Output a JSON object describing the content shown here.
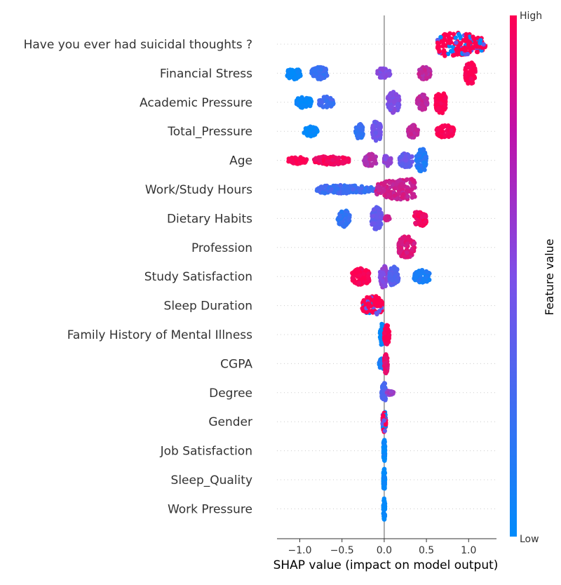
{
  "chart_data": {
    "type": "scatter",
    "subtype": "shap-beeswarm-summary",
    "title": "",
    "xlabel": "SHAP value (impact on model output)",
    "ylabel": "",
    "xlim": [
      -1.27,
      1.33
    ],
    "xticks": [
      -1.0,
      -0.5,
      0.0,
      0.5,
      1.0
    ],
    "xtick_labels": [
      "−1.0",
      "−0.5",
      "0.0",
      "0.5",
      "1.0"
    ],
    "zero_line": true,
    "grid": false,
    "colorbar": {
      "label": "Feature value",
      "high_label": "High",
      "low_label": "Low",
      "colors": [
        "#008bfb",
        "#7d4fe8",
        "#ff0052"
      ]
    },
    "features": [
      {
        "name": "Have you ever had suicidal thoughts ?",
        "clusters": [
          {
            "center": 0.62,
            "min": 0.63,
            "max": 1.2,
            "peak": 0.73,
            "halfHeight": 17,
            "value": 0.85,
            "mixed": true
          }
        ]
      },
      {
        "name": "Financial Stress",
        "clusters": [
          {
            "center": -1.07,
            "min": -1.15,
            "max": -0.99,
            "peak": -1.07,
            "halfHeight": 9,
            "value": 0.0
          },
          {
            "center": -0.77,
            "min": -0.86,
            "max": -0.67,
            "peak": -0.77,
            "halfHeight": 9,
            "value": 0.25
          },
          {
            "center": -0.02,
            "min": -0.08,
            "max": 0.07,
            "peak": -0.02,
            "halfHeight": 7,
            "value": 0.5
          },
          {
            "center": 0.47,
            "min": 0.41,
            "max": 0.55,
            "peak": 0.47,
            "halfHeight": 9,
            "value": 0.75
          },
          {
            "center": 1.02,
            "min": 0.96,
            "max": 1.08,
            "peak": 1.02,
            "halfHeight": 16,
            "value": 1.0
          }
        ]
      },
      {
        "name": "Academic Pressure",
        "clusters": [
          {
            "center": -0.95,
            "min": -1.04,
            "max": -0.86,
            "peak": -0.95,
            "halfHeight": 8,
            "value": 0.0
          },
          {
            "center": -0.69,
            "min": -0.77,
            "max": -0.6,
            "peak": -0.69,
            "halfHeight": 8,
            "value": 0.25
          },
          {
            "center": 0.11,
            "min": 0.04,
            "max": 0.18,
            "peak": 0.11,
            "halfHeight": 15,
            "value": 0.5
          },
          {
            "center": 0.45,
            "min": 0.39,
            "max": 0.51,
            "peak": 0.45,
            "halfHeight": 11,
            "value": 0.75
          },
          {
            "center": 0.67,
            "min": 0.61,
            "max": 0.73,
            "peak": 0.67,
            "halfHeight": 16,
            "value": 1.0
          }
        ]
      },
      {
        "name": "Total_Pressure",
        "clusters": [
          {
            "center": -0.87,
            "min": -0.95,
            "max": -0.79,
            "peak": -0.87,
            "halfHeight": 7,
            "value": 0.0
          },
          {
            "center": -0.3,
            "min": -0.34,
            "max": -0.25,
            "peak": -0.3,
            "halfHeight": 11,
            "value": 0.2
          },
          {
            "center": -0.09,
            "min": -0.14,
            "max": -0.04,
            "peak": -0.09,
            "halfHeight": 15,
            "value": 0.45
          },
          {
            "center": 0.34,
            "min": 0.28,
            "max": 0.4,
            "peak": 0.34,
            "halfHeight": 9,
            "value": 0.75
          },
          {
            "center": 0.72,
            "min": 0.62,
            "max": 0.83,
            "peak": 0.72,
            "halfHeight": 9,
            "value": 1.0
          }
        ]
      },
      {
        "name": "Age",
        "clusters": [
          {
            "center": -1.03,
            "min": -1.14,
            "max": -0.92,
            "peak": -1.03,
            "halfHeight": 5,
            "value": 1.0
          },
          {
            "center": -0.63,
            "min": -0.83,
            "max": -0.42,
            "peak": -0.63,
            "halfHeight": 6,
            "value": 0.95
          },
          {
            "center": -0.16,
            "min": -0.24,
            "max": -0.09,
            "peak": -0.16,
            "halfHeight": 9,
            "value": 0.7
          },
          {
            "center": 0.03,
            "min": 0.0,
            "max": 0.08,
            "peak": 0.03,
            "halfHeight": 8,
            "value": 0.55
          },
          {
            "center": 0.26,
            "min": 0.18,
            "max": 0.34,
            "peak": 0.26,
            "halfHeight": 10,
            "value": 0.4
          },
          {
            "center": 0.44,
            "min": 0.38,
            "max": 0.5,
            "peak": 0.44,
            "halfHeight": 17,
            "value": 0.15
          }
        ]
      },
      {
        "name": "Work/Study Hours",
        "clusters": [
          {
            "center": -0.45,
            "min": -0.8,
            "max": -0.1,
            "peak": -0.62,
            "halfHeight": 6,
            "value": 0.25
          },
          {
            "center": 0.14,
            "min": -0.1,
            "max": 0.38,
            "peak": 0.33,
            "halfHeight": 15,
            "value": 0.8
          }
        ]
      },
      {
        "name": "Dietary Habits",
        "clusters": [
          {
            "center": -0.48,
            "min": -0.55,
            "max": -0.41,
            "peak": -0.48,
            "halfHeight": 12,
            "value": 0.2
          },
          {
            "center": -0.09,
            "min": -0.15,
            "max": -0.03,
            "peak": -0.09,
            "halfHeight": 16,
            "value": 0.4
          },
          {
            "center": 0.03,
            "min": 0.01,
            "max": 0.07,
            "peak": 0.03,
            "halfHeight": 3,
            "value": 0.8
          },
          {
            "center": 0.42,
            "min": 0.35,
            "max": 0.5,
            "peak": 0.42,
            "halfHeight": 12,
            "value": 0.95
          }
        ]
      },
      {
        "name": "Profession",
        "clusters": [
          {
            "center": 0.26,
            "min": 0.17,
            "max": 0.36,
            "peak": 0.26,
            "halfHeight": 16,
            "value": 0.85
          }
        ]
      },
      {
        "name": "Study Satisfaction",
        "clusters": [
          {
            "center": -0.28,
            "min": -0.38,
            "max": -0.17,
            "peak": -0.28,
            "halfHeight": 12,
            "value": 1.0
          },
          {
            "center": -0.01,
            "min": -0.05,
            "max": 0.04,
            "peak": -0.01,
            "halfHeight": 16,
            "value": 0.55
          },
          {
            "center": 0.11,
            "min": 0.06,
            "max": 0.17,
            "peak": 0.11,
            "halfHeight": 14,
            "value": 0.35
          },
          {
            "center": 0.43,
            "min": 0.35,
            "max": 0.54,
            "peak": 0.43,
            "halfHeight": 10,
            "value": 0.1
          }
        ]
      },
      {
        "name": "Sleep Duration",
        "clusters": [
          {
            "center": -0.12,
            "min": -0.26,
            "max": -0.02,
            "peak": -0.12,
            "halfHeight": 14,
            "value": 0.55,
            "mixed": true
          }
        ]
      },
      {
        "name": "Family History of Mental Illness",
        "clusters": [
          {
            "center": -0.02,
            "min": -0.05,
            "max": 0.0,
            "peak": -0.02,
            "halfHeight": 16,
            "value": 0.0
          },
          {
            "center": 0.03,
            "min": 0.0,
            "max": 0.06,
            "peak": 0.03,
            "halfHeight": 14,
            "value": 1.0
          }
        ]
      },
      {
        "name": "CGPA",
        "clusters": [
          {
            "center": -0.02,
            "min": -0.06,
            "max": 0.0,
            "peak": -0.02,
            "halfHeight": 8,
            "value": 0.1
          },
          {
            "center": 0.02,
            "min": 0.0,
            "max": 0.04,
            "peak": 0.02,
            "halfHeight": 14,
            "value": 0.9
          }
        ]
      },
      {
        "name": "Degree",
        "clusters": [
          {
            "center": 0.0,
            "min": -0.03,
            "max": 0.02,
            "peak": 0.0,
            "halfHeight": 14,
            "value": 0.3
          },
          {
            "center": 0.06,
            "min": 0.02,
            "max": 0.11,
            "peak": 0.06,
            "halfHeight": 3,
            "value": 0.6
          }
        ]
      },
      {
        "name": "Gender",
        "clusters": [
          {
            "center": 0.0,
            "min": -0.02,
            "max": 0.02,
            "peak": 0.0,
            "halfHeight": 15,
            "value": 0.9,
            "mixed": true
          }
        ]
      },
      {
        "name": "Job Satisfaction",
        "clusters": [
          {
            "center": 0.0,
            "min": -0.01,
            "max": 0.01,
            "peak": 0.0,
            "halfHeight": 16,
            "value": 0.0
          }
        ]
      },
      {
        "name": "Sleep_Quality",
        "clusters": [
          {
            "center": 0.0,
            "min": -0.01,
            "max": 0.01,
            "peak": 0.0,
            "halfHeight": 16,
            "value": 0.0
          }
        ]
      },
      {
        "name": "Work Pressure",
        "clusters": [
          {
            "center": 0.0,
            "min": -0.01,
            "max": 0.01,
            "peak": 0.0,
            "halfHeight": 16,
            "value": 0.0
          }
        ]
      }
    ]
  }
}
